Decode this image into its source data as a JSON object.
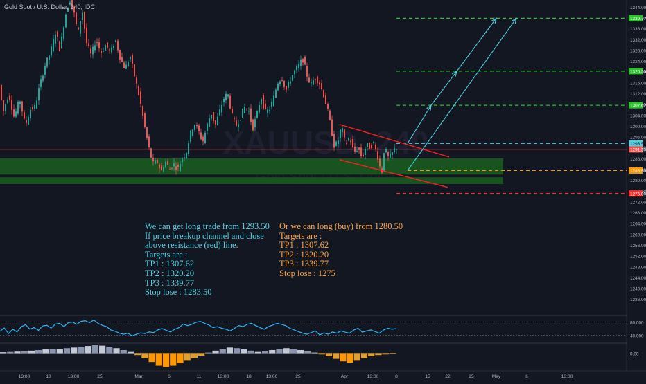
{
  "header": {
    "symbol_title": "Gold Spot / U.S. Dollar, 240, IDC"
  },
  "watermark": {
    "symbol": "XAUUSD, 240",
    "name": "Gold Spot / U.S. Dollar"
  },
  "colors": {
    "background": "#131722",
    "up": "#26a69a",
    "down": "#ef5350",
    "green_level": "#26c626",
    "cyan_level": "#4dd0e1",
    "orange_level": "#ff9800",
    "red_level": "#ff2a2a",
    "support_zone": "#1b5e20",
    "channel": "#ff1f1f",
    "oscillator_line": "#29b6f6"
  },
  "annotations": {
    "left": [
      "We can get long trade from 1293.50",
      "If price breakup channel and close",
      "above resistance (red) line.",
      "Targets are :",
      "TP1 : 1307.62",
      "TP2 : 1320.20",
      "TP3 : 1339.77",
      "Stop lose : 1283.50"
    ],
    "right": [
      "Or we can long (buy) from 1280.50",
      "Targets are :",
      "TP1 : 1307.62",
      "TP2 : 1320.20",
      "TP3 : 1339.77",
      "Stop lose : 1275"
    ]
  },
  "chart_data": [
    {
      "type": "candlestick",
      "title": "Gold Spot / U.S. Dollar, 240, IDC",
      "ylim": [
        1234,
        1346
      ],
      "y_ticks": [
        1236,
        1240,
        1244,
        1248,
        1252,
        1256,
        1260,
        1264,
        1268,
        1272,
        1276,
        1280,
        1284,
        1288,
        1292,
        1296,
        1300,
        1304,
        1308,
        1312,
        1316,
        1320,
        1324,
        1328,
        1332,
        1336,
        1340,
        1344
      ],
      "x_tick_labels": [
        "13:00",
        "18",
        "13:00",
        "25",
        "Mar",
        "6",
        "11",
        "13:00",
        "18",
        "13:00",
        "25",
        "Apr",
        "13:00",
        "8",
        "15",
        "22",
        "25",
        "May",
        "6",
        "13:00"
      ],
      "price_path": [
        [
          0,
          1316
        ],
        [
          6,
          1305
        ],
        [
          14,
          1312
        ],
        [
          22,
          1303
        ],
        [
          30,
          1310
        ],
        [
          38,
          1300
        ],
        [
          45,
          1306
        ],
        [
          52,
          1307
        ],
        [
          58,
          1314
        ],
        [
          66,
          1322
        ],
        [
          74,
          1327
        ],
        [
          82,
          1335
        ],
        [
          88,
          1328
        ],
        [
          95,
          1340
        ],
        [
          102,
          1347
        ],
        [
          108,
          1342
        ],
        [
          114,
          1334
        ],
        [
          120,
          1343
        ],
        [
          126,
          1331
        ],
        [
          133,
          1326
        ],
        [
          140,
          1332
        ],
        [
          147,
          1327
        ],
        [
          154,
          1330
        ],
        [
          161,
          1327
        ],
        [
          168,
          1332
        ],
        [
          175,
          1325
        ],
        [
          182,
          1321
        ],
        [
          189,
          1326
        ],
        [
          196,
          1318
        ],
        [
          203,
          1310
        ],
        [
          210,
          1300
        ],
        [
          216,
          1292
        ],
        [
          222,
          1286
        ],
        [
          228,
          1287
        ],
        [
          234,
          1283
        ],
        [
          240,
          1287
        ],
        [
          246,
          1284
        ],
        [
          252,
          1286
        ],
        [
          258,
          1284
        ],
        [
          264,
          1288
        ],
        [
          270,
          1290
        ],
        [
          276,
          1297
        ],
        [
          282,
          1301
        ],
        [
          288,
          1298
        ],
        [
          294,
          1294
        ],
        [
          300,
          1300
        ],
        [
          306,
          1305
        ],
        [
          312,
          1300
        ],
        [
          318,
          1305
        ],
        [
          324,
          1310
        ],
        [
          330,
          1312
        ],
        [
          336,
          1304
        ],
        [
          342,
          1300
        ],
        [
          348,
          1303
        ],
        [
          354,
          1307
        ],
        [
          360,
          1306
        ],
        [
          366,
          1299
        ],
        [
          372,
          1304
        ],
        [
          378,
          1311
        ],
        [
          384,
          1305
        ],
        [
          390,
          1306
        ],
        [
          396,
          1310
        ],
        [
          402,
          1316
        ],
        [
          408,
          1318
        ],
        [
          414,
          1313
        ],
        [
          420,
          1317
        ],
        [
          426,
          1320
        ],
        [
          432,
          1322
        ],
        [
          438,
          1325
        ],
        [
          444,
          1319
        ],
        [
          450,
          1315
        ],
        [
          456,
          1318
        ],
        [
          462,
          1316
        ],
        [
          468,
          1312
        ],
        [
          474,
          1306
        ],
        [
          480,
          1298
        ],
        [
          484,
          1292
        ],
        [
          490,
          1295
        ],
        [
          494,
          1300
        ],
        [
          500,
          1293
        ],
        [
          506,
          1296
        ],
        [
          512,
          1290
        ],
        [
          518,
          1292
        ],
        [
          524,
          1288
        ],
        [
          530,
          1293
        ],
        [
          536,
          1292
        ],
        [
          540,
          1294
        ],
        [
          546,
          1289
        ],
        [
          552,
          1282
        ],
        [
          556,
          1292
        ],
        [
          562,
          1288
        ],
        [
          568,
          1290
        ],
        [
          572,
          1292
        ]
      ],
      "levels": [
        {
          "label": "1339.77",
          "value": 1339.77,
          "style": "green"
        },
        {
          "label": "1320.20",
          "value": 1320.2,
          "style": "green"
        },
        {
          "label": "1307.62",
          "value": 1307.62,
          "style": "green"
        },
        {
          "label": "1293.50",
          "value": 1293.5,
          "style": "cyan"
        },
        {
          "label": "1283.50",
          "value": 1283.5,
          "style": "orange"
        },
        {
          "label": "1275.00",
          "value": 1275.0,
          "style": "red"
        }
      ],
      "current_price": {
        "label": "1291.30",
        "value": 1291.3
      },
      "support_zones": [
        [
          1282,
          1288
        ],
        [
          1278.5,
          1281
        ]
      ]
    },
    {
      "type": "line",
      "y_ticks": [
        80.0,
        40.0
      ],
      "y_tick_labels": [
        "80.000",
        "40.000"
      ],
      "ylim": [
        20,
        100
      ],
      "values": [
        52,
        62,
        45,
        58,
        50,
        66,
        72,
        58,
        63,
        55,
        68,
        70,
        62,
        74,
        76,
        66,
        78,
        80,
        73,
        82,
        84,
        78,
        86,
        76,
        70,
        66,
        56,
        52,
        46,
        43,
        46,
        38,
        43,
        47,
        45,
        50,
        48,
        56,
        60,
        55,
        50,
        58,
        63,
        74,
        69,
        73,
        79,
        82,
        76,
        71,
        63,
        66,
        61,
        58,
        53,
        61,
        69,
        66,
        73,
        76,
        69,
        63,
        58,
        66,
        71,
        76,
        73,
        69,
        61,
        56,
        51,
        46,
        43,
        48,
        53,
        41,
        47,
        43,
        50,
        46,
        53,
        49,
        46,
        56,
        61,
        49,
        53,
        56,
        51,
        46,
        56,
        61,
        58,
        60
      ]
    },
    {
      "type": "bar",
      "y_ticks": [
        0.0
      ],
      "y_tick_labels": [
        "0.00"
      ],
      "ylim": [
        -2.6,
        1.6
      ],
      "values": [
        0.15,
        0.2,
        0.25,
        0.3,
        0.4,
        0.5,
        0.6,
        0.65,
        0.7,
        0.8,
        0.9,
        1.0,
        1.15,
        1.3,
        1.2,
        1.0,
        0.8,
        0.5,
        0.2,
        -0.3,
        -0.8,
        -1.4,
        -2.0,
        -2.2,
        -2.0,
        -1.6,
        -1.2,
        -0.8,
        -0.4,
        0.1,
        0.4,
        0.7,
        0.9,
        0.8,
        0.6,
        0.4,
        0.2,
        0.3,
        0.5,
        0.7,
        0.8,
        0.7,
        0.5,
        0.3,
        0.1,
        -0.2,
        -0.5,
        -0.9,
        -1.3,
        -1.5,
        -1.2,
        -0.8,
        -0.5,
        -0.3,
        -0.2,
        -0.1
      ]
    }
  ]
}
